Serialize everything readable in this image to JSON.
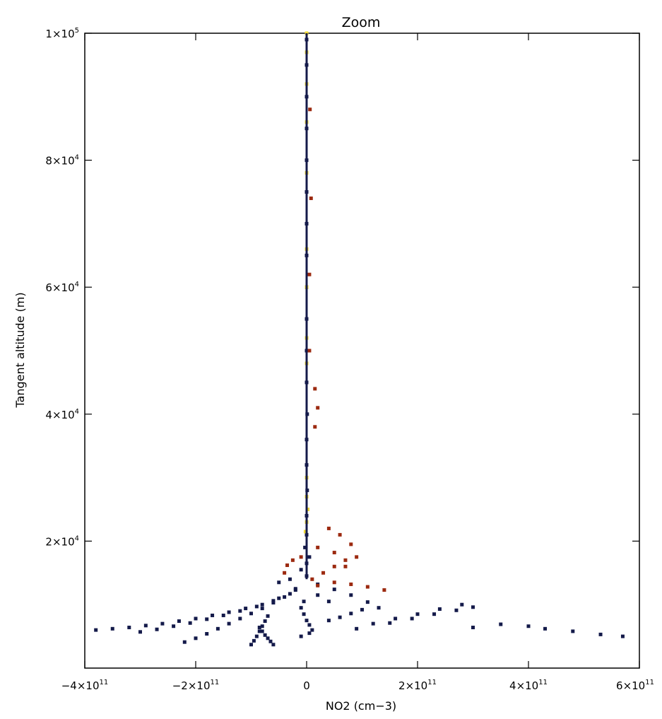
{
  "chart_data": {
    "type": "scatter",
    "title": "Zoom",
    "xlabel": "NO2 (cm−3)",
    "ylabel": "Tangent altitude (m)",
    "xlim": [
      -400000000000.0,
      600000000000.0
    ],
    "ylim": [
      0,
      100000
    ],
    "x_ticks": [
      {
        "value": -400000000000.0,
        "mantissa": "−4",
        "exponent": "11"
      },
      {
        "value": -200000000000.0,
        "mantissa": "−2",
        "exponent": "11"
      },
      {
        "value": 0,
        "mantissa": "0",
        "exponent": ""
      },
      {
        "value": 200000000000.0,
        "mantissa": "2",
        "exponent": "11"
      },
      {
        "value": 400000000000.0,
        "mantissa": "4",
        "exponent": "11"
      },
      {
        "value": 600000000000.0,
        "mantissa": "6",
        "exponent": "11"
      }
    ],
    "y_ticks": [
      {
        "value": 20000,
        "mantissa": "2",
        "exponent": "4"
      },
      {
        "value": 40000,
        "mantissa": "4",
        "exponent": "4"
      },
      {
        "value": 60000,
        "mantissa": "6",
        "exponent": "4"
      },
      {
        "value": 80000,
        "mantissa": "8",
        "exponent": "4"
      },
      {
        "value": 100000,
        "mantissa": "1",
        "exponent": "5"
      }
    ],
    "grid": false,
    "colors": {
      "navy": "#141a4a",
      "darkred": "#9c2a10",
      "yellow": "#f0d836"
    },
    "series": [
      {
        "color": "#141a4a",
        "points": [
          [
            -380000000000.0,
            6000
          ],
          [
            -350000000000.0,
            6200
          ],
          [
            -320000000000.0,
            6400
          ],
          [
            -290000000000.0,
            6700
          ],
          [
            -260000000000.0,
            7000
          ],
          [
            -230000000000.0,
            7400
          ],
          [
            -200000000000.0,
            7800
          ],
          [
            -170000000000.0,
            8300
          ],
          [
            -140000000000.0,
            8800
          ],
          [
            -110000000000.0,
            9400
          ],
          [
            -80000000000.0,
            10000
          ],
          [
            -50000000000.0,
            11000
          ],
          [
            -20000000000.0,
            12500
          ],
          [
            -300000000000.0,
            5700
          ],
          [
            -270000000000.0,
            6100
          ],
          [
            -240000000000.0,
            6600
          ],
          [
            -210000000000.0,
            7100
          ],
          [
            -180000000000.0,
            7700
          ],
          [
            -150000000000.0,
            8300
          ],
          [
            -120000000000.0,
            9000
          ],
          [
            -90000000000.0,
            9700
          ],
          [
            -60000000000.0,
            10600
          ],
          [
            -30000000000.0,
            11700
          ],
          [
            -220000000000.0,
            4100
          ],
          [
            -200000000000.0,
            4700
          ],
          [
            -180000000000.0,
            5400
          ],
          [
            -160000000000.0,
            6200
          ],
          [
            -140000000000.0,
            7000
          ],
          [
            -120000000000.0,
            7800
          ],
          [
            -100000000000.0,
            8600
          ],
          [
            -80000000000.0,
            9400
          ],
          [
            -60000000000.0,
            10300
          ],
          [
            -40000000000.0,
            11200
          ],
          [
            -20000000000.0,
            12300
          ],
          [
            -100000000000.0,
            3700
          ],
          [
            -95000000000.0,
            4300
          ],
          [
            -90000000000.0,
            5000
          ],
          [
            -85000000000.0,
            5800
          ],
          [
            -80000000000.0,
            6600
          ],
          [
            -75000000000.0,
            7400
          ],
          [
            -70000000000.0,
            8200
          ],
          [
            -60000000000.0,
            3700
          ],
          [
            -65000000000.0,
            4200
          ],
          [
            -70000000000.0,
            4700
          ],
          [
            -75000000000.0,
            5200
          ],
          [
            -80000000000.0,
            5800
          ],
          [
            -85000000000.0,
            6400
          ],
          [
            -10000000000.0,
            5000
          ],
          [
            5000000000.0,
            5500
          ],
          [
            10000000000.0,
            6000
          ],
          [
            5000000000.0,
            6800
          ],
          [
            0.0,
            7500
          ],
          [
            -5000000000.0,
            8500
          ],
          [
            -10000000000.0,
            9500
          ],
          [
            -5000000000.0,
            10500
          ],
          [
            40000000000.0,
            7500
          ],
          [
            60000000000.0,
            8000
          ],
          [
            80000000000.0,
            8600
          ],
          [
            100000000000.0,
            9200
          ],
          [
            40000000000.0,
            10500
          ],
          [
            20000000000.0,
            11500
          ],
          [
            90000000000.0,
            6200
          ],
          [
            120000000000.0,
            7000
          ],
          [
            160000000000.0,
            7800
          ],
          [
            200000000000.0,
            8500
          ],
          [
            240000000000.0,
            9300
          ],
          [
            280000000000.0,
            10000
          ],
          [
            150000000000.0,
            7100
          ],
          [
            190000000000.0,
            7800
          ],
          [
            230000000000.0,
            8500
          ],
          [
            270000000000.0,
            9100
          ],
          [
            300000000000.0,
            9600
          ],
          [
            300000000000.0,
            6400
          ],
          [
            350000000000.0,
            6900
          ],
          [
            400000000000.0,
            6600
          ],
          [
            430000000000.0,
            6200
          ],
          [
            480000000000.0,
            5800
          ],
          [
            530000000000.0,
            5300
          ],
          [
            570000000000.0,
            5000
          ],
          [
            -50000000000.0,
            13500
          ],
          [
            -30000000000.0,
            14000
          ],
          [
            20000000000.0,
            13200
          ],
          [
            50000000000.0,
            12400
          ],
          [
            80000000000.0,
            11500
          ],
          [
            110000000000.0,
            10400
          ],
          [
            130000000000.0,
            9500
          ],
          [
            0.0,
            14500
          ],
          [
            -10000000000.0,
            15500
          ],
          [
            0.0,
            16500
          ],
          [
            5000000000.0,
            17500
          ],
          [
            -3000000000.0,
            19000
          ],
          [
            0.0,
            21000
          ],
          [
            0.0,
            24000
          ],
          [
            1000000000.0,
            28000
          ],
          [
            0.0,
            32000
          ],
          [
            0.0,
            36000
          ],
          [
            1000000000.0,
            40000
          ],
          [
            0.0,
            45000
          ],
          [
            0.0,
            50000
          ],
          [
            0.0,
            55000
          ],
          [
            0.0,
            60000
          ],
          [
            0.0,
            65000
          ],
          [
            0.0,
            70000
          ],
          [
            0.0,
            75000
          ],
          [
            0.0,
            80000
          ],
          [
            0.0,
            85000
          ],
          [
            0.0,
            90000
          ],
          [
            0.0,
            95000
          ],
          [
            0.0,
            99000
          ]
        ]
      },
      {
        "color": "#9c2a10",
        "points": [
          [
            -40000000000.0,
            15000
          ],
          [
            -35000000000.0,
            16200
          ],
          [
            -25000000000.0,
            17000
          ],
          [
            -10000000000.0,
            17500
          ],
          [
            10000000000.0,
            14000
          ],
          [
            30000000000.0,
            15000
          ],
          [
            50000000000.0,
            16000
          ],
          [
            70000000000.0,
            17000
          ],
          [
            50000000000.0,
            18200
          ],
          [
            20000000000.0,
            19000
          ],
          [
            20000000000.0,
            13000
          ],
          [
            50000000000.0,
            13500
          ],
          [
            80000000000.0,
            13200
          ],
          [
            110000000000.0,
            12800
          ],
          [
            140000000000.0,
            12300
          ],
          [
            40000000000.0,
            22000
          ],
          [
            60000000000.0,
            21000
          ],
          [
            80000000000.0,
            19500
          ],
          [
            90000000000.0,
            17500
          ],
          [
            70000000000.0,
            16000
          ],
          [
            15000000000.0,
            38000
          ],
          [
            20000000000.0,
            41000
          ],
          [
            15000000000.0,
            44000
          ],
          [
            5000000000.0,
            50000
          ],
          [
            5000000000.0,
            62000
          ],
          [
            8000000000.0,
            74000
          ],
          [
            6000000000.0,
            88000
          ]
        ]
      },
      {
        "color": "#f0d836",
        "points": [
          [
            0.0,
            23000
          ],
          [
            2000000000.0,
            25000
          ],
          [
            0.0,
            27000
          ],
          [
            -2000000000.0,
            21500
          ],
          [
            0.0,
            30000
          ],
          [
            0.0,
            48000
          ],
          [
            0.0,
            52000
          ],
          [
            0.0,
            60000
          ],
          [
            0.0,
            66000
          ],
          [
            0.0,
            78000
          ],
          [
            0.0,
            86000
          ],
          [
            0.0,
            92000
          ],
          [
            0.0,
            97000
          ],
          [
            0.0,
            100000
          ]
        ]
      }
    ]
  }
}
